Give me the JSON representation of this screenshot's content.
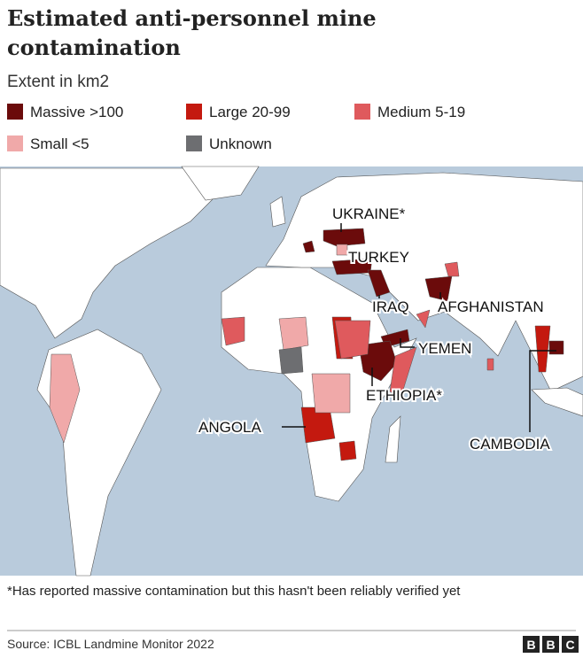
{
  "header": {
    "title": "Estimated anti-personnel mine contamination",
    "subtitle": "Extent in km2"
  },
  "legend": [
    {
      "name": "Massive >100",
      "color": "#6b0b0b"
    },
    {
      "name": "Large 20-99",
      "color": "#c4190f"
    },
    {
      "name": "Medium 5-19",
      "color": "#df5a5d"
    },
    {
      "name": "Small <5",
      "color": "#f0a9a9"
    },
    {
      "name": "Unknown",
      "color": "#6d6e71"
    }
  ],
  "map": {
    "ocean_color": "#b9cbdc",
    "land_color": "#ffffff",
    "labels": [
      "UKRAINE*",
      "TURKEY",
      "IRAQ",
      "AFGHANISTAN",
      "YEMEN",
      "ETHIOPIA*",
      "ANGOLA",
      "CAMBODIA"
    ]
  },
  "footnote": "*Has reported massive contamination but this hasn't been reliably verified yet",
  "source": "Source: ICBL Landmine Monitor 2022",
  "logo": [
    "B",
    "B",
    "C"
  ]
}
